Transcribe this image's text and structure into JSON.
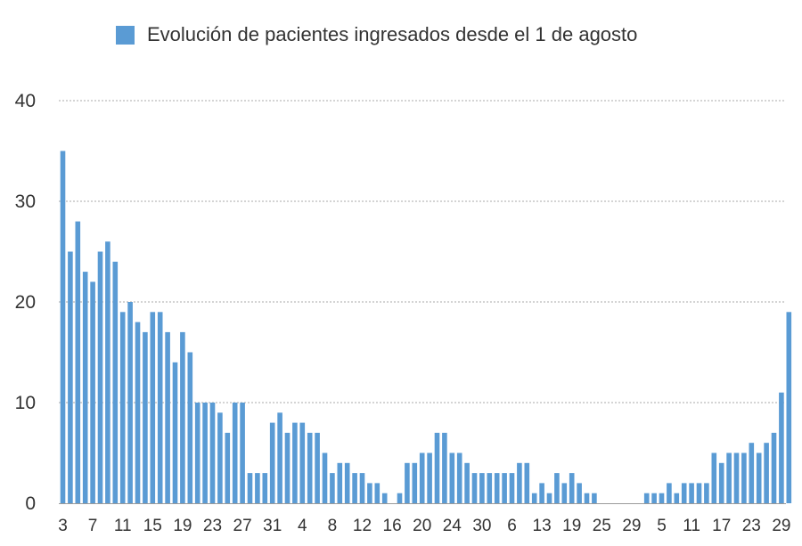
{
  "chart_data": {
    "type": "bar",
    "legend_position": "top",
    "grid": true,
    "ylim": [
      0,
      40
    ],
    "yticks": [
      0,
      10,
      20,
      30,
      40
    ],
    "series": [
      {
        "name": "Evolución de pacientes ingresados desde el 1 de agosto",
        "color": "#5a9bd4",
        "values": [
          35,
          25,
          28,
          23,
          22,
          25,
          26,
          24,
          19,
          20,
          18,
          17,
          19,
          19,
          17,
          14,
          17,
          15,
          10,
          10,
          10,
          9,
          7,
          10,
          10,
          3,
          3,
          3,
          8,
          9,
          7,
          8,
          8,
          7,
          7,
          5,
          3,
          4,
          4,
          3,
          3,
          2,
          2,
          1,
          0,
          1,
          4,
          4,
          5,
          5,
          7,
          7,
          5,
          5,
          4,
          3,
          3,
          3,
          3,
          3,
          3,
          4,
          4,
          1,
          2,
          1,
          3,
          2,
          3,
          2,
          1,
          1,
          0,
          0,
          0,
          0,
          0,
          0,
          1,
          1,
          1,
          2,
          1,
          2,
          2,
          2,
          2,
          5,
          4,
          5,
          5,
          5,
          6,
          5,
          6,
          7,
          11,
          19
        ]
      }
    ],
    "x_tick_labels": [
      {
        "index": 0,
        "label": "3"
      },
      {
        "index": 4,
        "label": "7"
      },
      {
        "index": 8,
        "label": "11"
      },
      {
        "index": 12,
        "label": "15"
      },
      {
        "index": 16,
        "label": "19"
      },
      {
        "index": 20,
        "label": "23"
      },
      {
        "index": 24,
        "label": "27"
      },
      {
        "index": 28,
        "label": "31"
      },
      {
        "index": 32,
        "label": "4"
      },
      {
        "index": 36,
        "label": "8"
      },
      {
        "index": 40,
        "label": "12"
      },
      {
        "index": 44,
        "label": "16"
      },
      {
        "index": 48,
        "label": "20"
      },
      {
        "index": 52,
        "label": "24"
      },
      {
        "index": 56,
        "label": "30"
      },
      {
        "index": 60,
        "label": "6"
      },
      {
        "index": 64,
        "label": "13"
      },
      {
        "index": 68,
        "label": "19"
      },
      {
        "index": 72,
        "label": "25"
      },
      {
        "index": 76,
        "label": "29"
      },
      {
        "index": 80,
        "label": "5"
      },
      {
        "index": 84,
        "label": "11"
      },
      {
        "index": 88,
        "label": "17"
      },
      {
        "index": 92,
        "label": "23"
      },
      {
        "index": 96,
        "label": "29"
      }
    ]
  }
}
